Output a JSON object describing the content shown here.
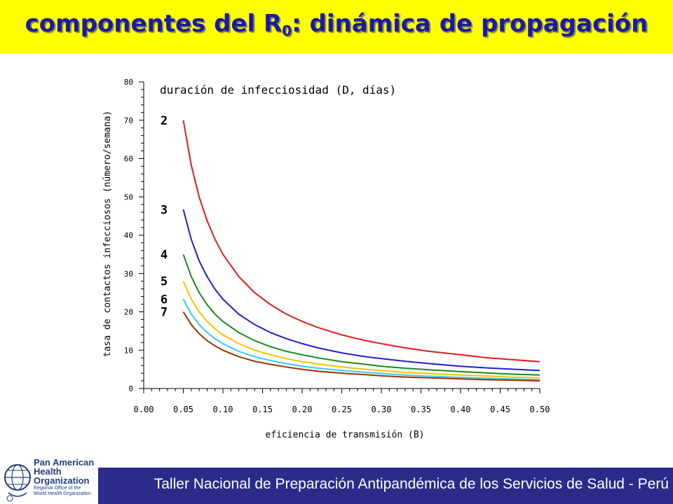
{
  "title": {
    "main": "componentes del R",
    "subscript": "0",
    "rest": ": dinámica de propagación"
  },
  "footer": {
    "text": "Taller Nacional de Preparación Antipandémica de los Servicios de Salud - Perú"
  },
  "logo": {
    "name_line1": "Pan American",
    "name_line2": "Health",
    "name_line3": "Organization",
    "sub_line1": "Regional Office of the",
    "sub_line2": "World Health Organization"
  },
  "colors": {
    "title_bg": "#ffff00",
    "title_text": "#1a1aa8",
    "footer_bg": "#2b2b8a",
    "footer_text": "#ffffff",
    "logo_blue": "#1f3d7a"
  },
  "chart_data": {
    "type": "line",
    "title": "duración de infecciosidad (D, días)",
    "xlabel": "eficiencia de transmisión (B)",
    "ylabel": "tasa de contactos infecciosos (número/semana)",
    "xlim": [
      0,
      0.5
    ],
    "ylim": [
      0,
      80
    ],
    "x_ticks": [
      "0.00",
      "0.05",
      "0.10",
      "0.15",
      "0.20",
      "0.25",
      "0.30",
      "0.35",
      "0.40",
      "0.45",
      "0.50"
    ],
    "y_ticks": [
      "0",
      "10",
      "20",
      "30",
      "40",
      "50",
      "60",
      "70",
      "80"
    ],
    "grid": false,
    "legend": "none",
    "x": [
      0.05,
      0.06,
      0.07,
      0.08,
      0.09,
      0.1,
      0.12,
      0.14,
      0.16,
      0.18,
      0.2,
      0.22,
      0.25,
      0.28,
      0.3,
      0.33,
      0.36,
      0.4,
      0.43,
      0.46,
      0.5
    ],
    "series": [
      {
        "label": "2",
        "color": "#e31a1c",
        "values": [
          70.0,
          58.3,
          50.0,
          43.8,
          38.9,
          35.0,
          29.2,
          25.0,
          21.9,
          19.4,
          17.5,
          15.9,
          14.0,
          12.5,
          11.7,
          10.6,
          9.7,
          8.8,
          8.1,
          7.6,
          7.0
        ]
      },
      {
        "label": "3",
        "color": "#1f1fd0",
        "values": [
          46.7,
          38.9,
          33.3,
          29.2,
          25.9,
          23.3,
          19.4,
          16.7,
          14.6,
          13.0,
          11.7,
          10.6,
          9.3,
          8.3,
          7.8,
          7.1,
          6.5,
          5.8,
          5.4,
          5.1,
          4.7
        ]
      },
      {
        "label": "4",
        "color": "#1a8a1a",
        "values": [
          35.0,
          29.2,
          25.0,
          21.9,
          19.4,
          17.5,
          14.6,
          12.5,
          10.9,
          9.7,
          8.8,
          8.0,
          7.0,
          6.3,
          5.8,
          5.3,
          4.9,
          4.4,
          4.1,
          3.8,
          3.5
        ]
      },
      {
        "label": "5",
        "color": "#ffc000",
        "values": [
          28.0,
          23.3,
          20.0,
          17.5,
          15.6,
          14.0,
          11.7,
          10.0,
          8.8,
          7.8,
          7.0,
          6.4,
          5.6,
          5.0,
          4.7,
          4.2,
          3.9,
          3.5,
          3.3,
          3.0,
          2.8
        ]
      },
      {
        "label": "6",
        "color": "#33ccff",
        "values": [
          23.3,
          19.4,
          16.7,
          14.6,
          13.0,
          11.7,
          9.7,
          8.3,
          7.3,
          6.5,
          5.8,
          5.3,
          4.7,
          4.2,
          3.9,
          3.5,
          3.2,
          2.9,
          2.7,
          2.5,
          2.3
        ]
      },
      {
        "label": "7",
        "color": "#993300",
        "values": [
          20.0,
          16.7,
          14.3,
          12.5,
          11.1,
          10.0,
          8.3,
          7.1,
          6.3,
          5.6,
          5.0,
          4.5,
          4.0,
          3.6,
          3.3,
          3.0,
          2.8,
          2.5,
          2.3,
          2.2,
          2.0
        ]
      }
    ]
  }
}
